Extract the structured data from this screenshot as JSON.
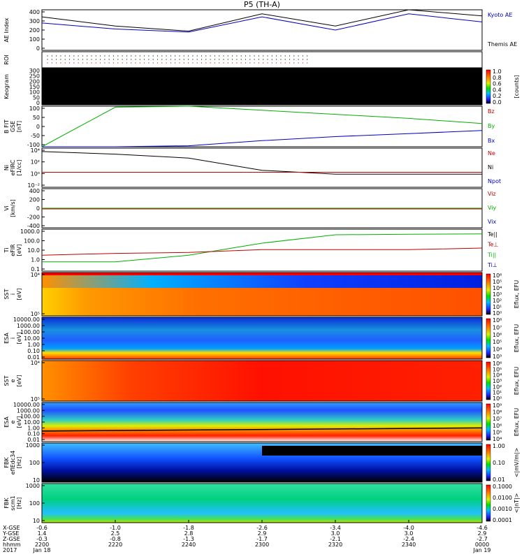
{
  "title": "P5 (TH-A)",
  "panels": [
    {
      "id": "ae",
      "ylabel": [
        "AE Index"
      ],
      "yticks": [
        "0",
        "100",
        "200",
        "300",
        "400"
      ],
      "legend": [
        {
          "text": "Kyoto AE",
          "color": "#0000c0"
        },
        {
          "text": "Themis AE",
          "color": "#000000"
        }
      ]
    },
    {
      "id": "roi",
      "ylabel": [
        "ROI"
      ],
      "yticks": [],
      "legend": []
    },
    {
      "id": "keogram",
      "ylabel": [
        "Keogram"
      ],
      "yticks": [
        "0",
        "50",
        "100",
        "150",
        "200",
        "250",
        "300"
      ],
      "legend": [],
      "colorbar": {
        "ticks": [
          "0.0",
          "0.2",
          "0.4",
          "0.6",
          "0.8",
          "1.0"
        ],
        "label": "[counts]"
      }
    },
    {
      "id": "bfit",
      "ylabel": [
        "B FIT",
        "GSE",
        "[nT]"
      ],
      "yticks": [
        "-100",
        "-50",
        "0",
        "50",
        "100"
      ],
      "legend": [
        {
          "text": "Bz",
          "color": "#c00000"
        },
        {
          "text": "By",
          "color": "#00b000"
        },
        {
          "text": "Bx",
          "color": "#0000c0"
        }
      ]
    },
    {
      "id": "ni",
      "ylabel": [
        "Ni",
        "eFIRC",
        "[1/cc]"
      ],
      "yticks": [
        "10⁻²",
        "10⁰",
        "10²",
        "10⁴"
      ],
      "legend": [
        {
          "text": "Ne",
          "color": "#c00000"
        },
        {
          "text": "Ni",
          "color": "#000000"
        },
        {
          "text": "Npot",
          "color": "#0000c0"
        }
      ]
    },
    {
      "id": "vi",
      "ylabel": [
        "Vi",
        "[km/s]"
      ],
      "yticks": [
        "-400",
        "-200",
        "0",
        "200",
        "400"
      ],
      "legend": [
        {
          "text": "Viz",
          "color": "#c00000"
        },
        {
          "text": "Viy",
          "color": "#00b000"
        },
        {
          "text": "Vix",
          "color": "#0000c0"
        }
      ]
    },
    {
      "id": "ti",
      "ylabel": [
        "Ti",
        "eFIR",
        "[eV]"
      ],
      "yticks": [
        "0.1",
        "1.0",
        "10.0",
        "100.0",
        "1000.0"
      ],
      "legend": [
        {
          "text": "Te||",
          "color": "#000000"
        },
        {
          "text": "Te⊥",
          "color": "#c00000"
        },
        {
          "text": "Ti||",
          "color": "#00b000"
        },
        {
          "text": "Ti⊥",
          "color": "#0000c0"
        }
      ]
    },
    {
      "id": "sst_i",
      "ylabel": [
        "SST",
        "i",
        "[eV]"
      ],
      "yticks": [
        "10⁵",
        "10⁴"
      ],
      "legend": [],
      "colorbar": {
        "ticks": [
          "10⁰",
          "10¹",
          "10²",
          "10³",
          "10⁴",
          "10⁵",
          "10⁶"
        ],
        "label": "Eflux, EFU"
      }
    },
    {
      "id": "esa_i",
      "ylabel": [
        "ESA",
        "i",
        "[eV]"
      ],
      "yticks": [
        "0.01",
        "0.10",
        "1.00",
        "10.00",
        "100.00",
        "1000.00",
        "10000.00"
      ],
      "legend": [],
      "colorbar": {
        "ticks": [
          "10³",
          "10⁴",
          "10⁵",
          "10⁶",
          "10⁷",
          "10⁸"
        ],
        "label": "Eflux, EFU"
      }
    },
    {
      "id": "sst_e",
      "ylabel": [
        "SST",
        "e",
        "[eV]"
      ],
      "yticks": [
        "10⁵",
        "10⁴"
      ],
      "legend": [],
      "colorbar": {
        "ticks": [
          "10⁰",
          "10¹",
          "10²",
          "10³",
          "10⁴",
          "10⁵",
          "10⁶"
        ],
        "label": "Eflux, EFU"
      }
    },
    {
      "id": "esa_e",
      "ylabel": [
        "ESA",
        "e",
        "[eV]"
      ],
      "yticks": [
        "0.01",
        "0.10",
        "1.00",
        "10.00",
        "100.00",
        "1000.00",
        "10000.00"
      ],
      "legend": [],
      "colorbar": {
        "ticks": [
          "10⁴",
          "10⁵",
          "10⁶",
          "10⁷",
          "10⁸",
          "10⁹"
        ],
        "label": "Eflux, EFU"
      }
    },
    {
      "id": "fbk_e",
      "ylabel": [
        "FBK",
        "eflEdc34",
        "[Hz]"
      ],
      "yticks": [
        "10",
        "100",
        "1000"
      ],
      "legend": [],
      "colorbar": {
        "ticks": [
          "0.01",
          "0.10",
          "1.00"
        ],
        "label": "<|mV/m|>"
      }
    },
    {
      "id": "fbk_b",
      "ylabel": [
        "FBK",
        "scm1",
        "[Hz]"
      ],
      "yticks": [
        "10",
        "100",
        "1000"
      ],
      "legend": [],
      "colorbar": {
        "ticks": [
          "0.0001",
          "0.0010",
          "0.0100",
          "0.1000"
        ],
        "label": "<|nT|>"
      }
    }
  ],
  "xaxis": {
    "row_labels": [
      "X-GSE",
      "Y-GSE",
      "Z-GSE",
      "hhmm",
      "2017"
    ],
    "ticks": [
      {
        "values": [
          "-0.6",
          "1.4",
          "-0.3",
          "2200",
          "Jan 18"
        ]
      },
      {
        "values": [
          "-1.0",
          "2.5",
          "-0.8",
          "2220",
          ""
        ]
      },
      {
        "values": [
          "-1.8",
          "2.8",
          "-1.3",
          "2240",
          ""
        ]
      },
      {
        "values": [
          "-2.6",
          "2.9",
          "-1.7",
          "2300",
          ""
        ]
      },
      {
        "values": [
          "-3.4",
          "3.0",
          "-2.1",
          "2320",
          ""
        ]
      },
      {
        "values": [
          "-4.0",
          "3.0",
          "-2.4",
          "2340",
          ""
        ]
      },
      {
        "values": [
          "-4.6",
          "2.9",
          "-2.7",
          "0000",
          "Jan 19"
        ]
      }
    ]
  },
  "chart_data": [
    {
      "type": "line",
      "title": "P5 (TH-A)",
      "ylabel": "AE Index",
      "ylim": [
        0,
        400
      ],
      "x": [
        "2200",
        "2220",
        "2240",
        "2300",
        "2320",
        "2340",
        "0000"
      ],
      "series": [
        {
          "name": "Kyoto AE",
          "values": [
            270,
            210,
            180,
            330,
            200,
            360,
            280
          ]
        },
        {
          "name": "Themis AE",
          "values": [
            330,
            240,
            190,
            360,
            240,
            400,
            340
          ]
        }
      ]
    },
    {
      "type": "line",
      "ylabel": "B FIT GSE [nT]",
      "ylim": [
        -100,
        100
      ],
      "x": [
        "2205",
        "2220",
        "2240",
        "2300",
        "2320",
        "2340",
        "0000"
      ],
      "series": [
        {
          "name": "Bz",
          "values": [
            null,
            null,
            null,
            null,
            null,
            null,
            null
          ]
        },
        {
          "name": "By",
          "values": [
            -100,
            95,
            100,
            80,
            60,
            40,
            15
          ]
        },
        {
          "name": "Bx",
          "values": [
            -100,
            -100,
            -95,
            -70,
            -50,
            -35,
            -20
          ]
        }
      ]
    },
    {
      "type": "line",
      "ylabel": "Ni eFIRC [1/cc]",
      "ylim": [
        "10⁻²",
        "10⁴"
      ],
      "x": [
        "2200",
        "2220",
        "2240",
        "2300",
        "2320",
        "2340",
        "0000"
      ],
      "series": [
        {
          "name": "Ni",
          "values": [
            3000,
            1200,
            300,
            4,
            1,
            1,
            1
          ]
        },
        {
          "name": "Ne",
          "values": [
            2,
            2,
            2,
            2,
            2,
            2,
            2
          ]
        }
      ]
    },
    {
      "type": "line",
      "ylabel": "Ti eFIR [eV]",
      "ylim": [
        0.1,
        3000
      ],
      "x": [
        "2200",
        "2220",
        "2240",
        "2300",
        "2320",
        "2340",
        "0000"
      ],
      "series": [
        {
          "name": "Ti||",
          "values": [
            1,
            1,
            5,
            100,
            800,
            900,
            1000
          ]
        },
        {
          "name": "Te⊥",
          "values": [
            5,
            8,
            10,
            20,
            20,
            20,
            30
          ]
        }
      ]
    }
  ],
  "colors": {
    "plot_bg": "#ffffff",
    "axis": "#000000"
  }
}
